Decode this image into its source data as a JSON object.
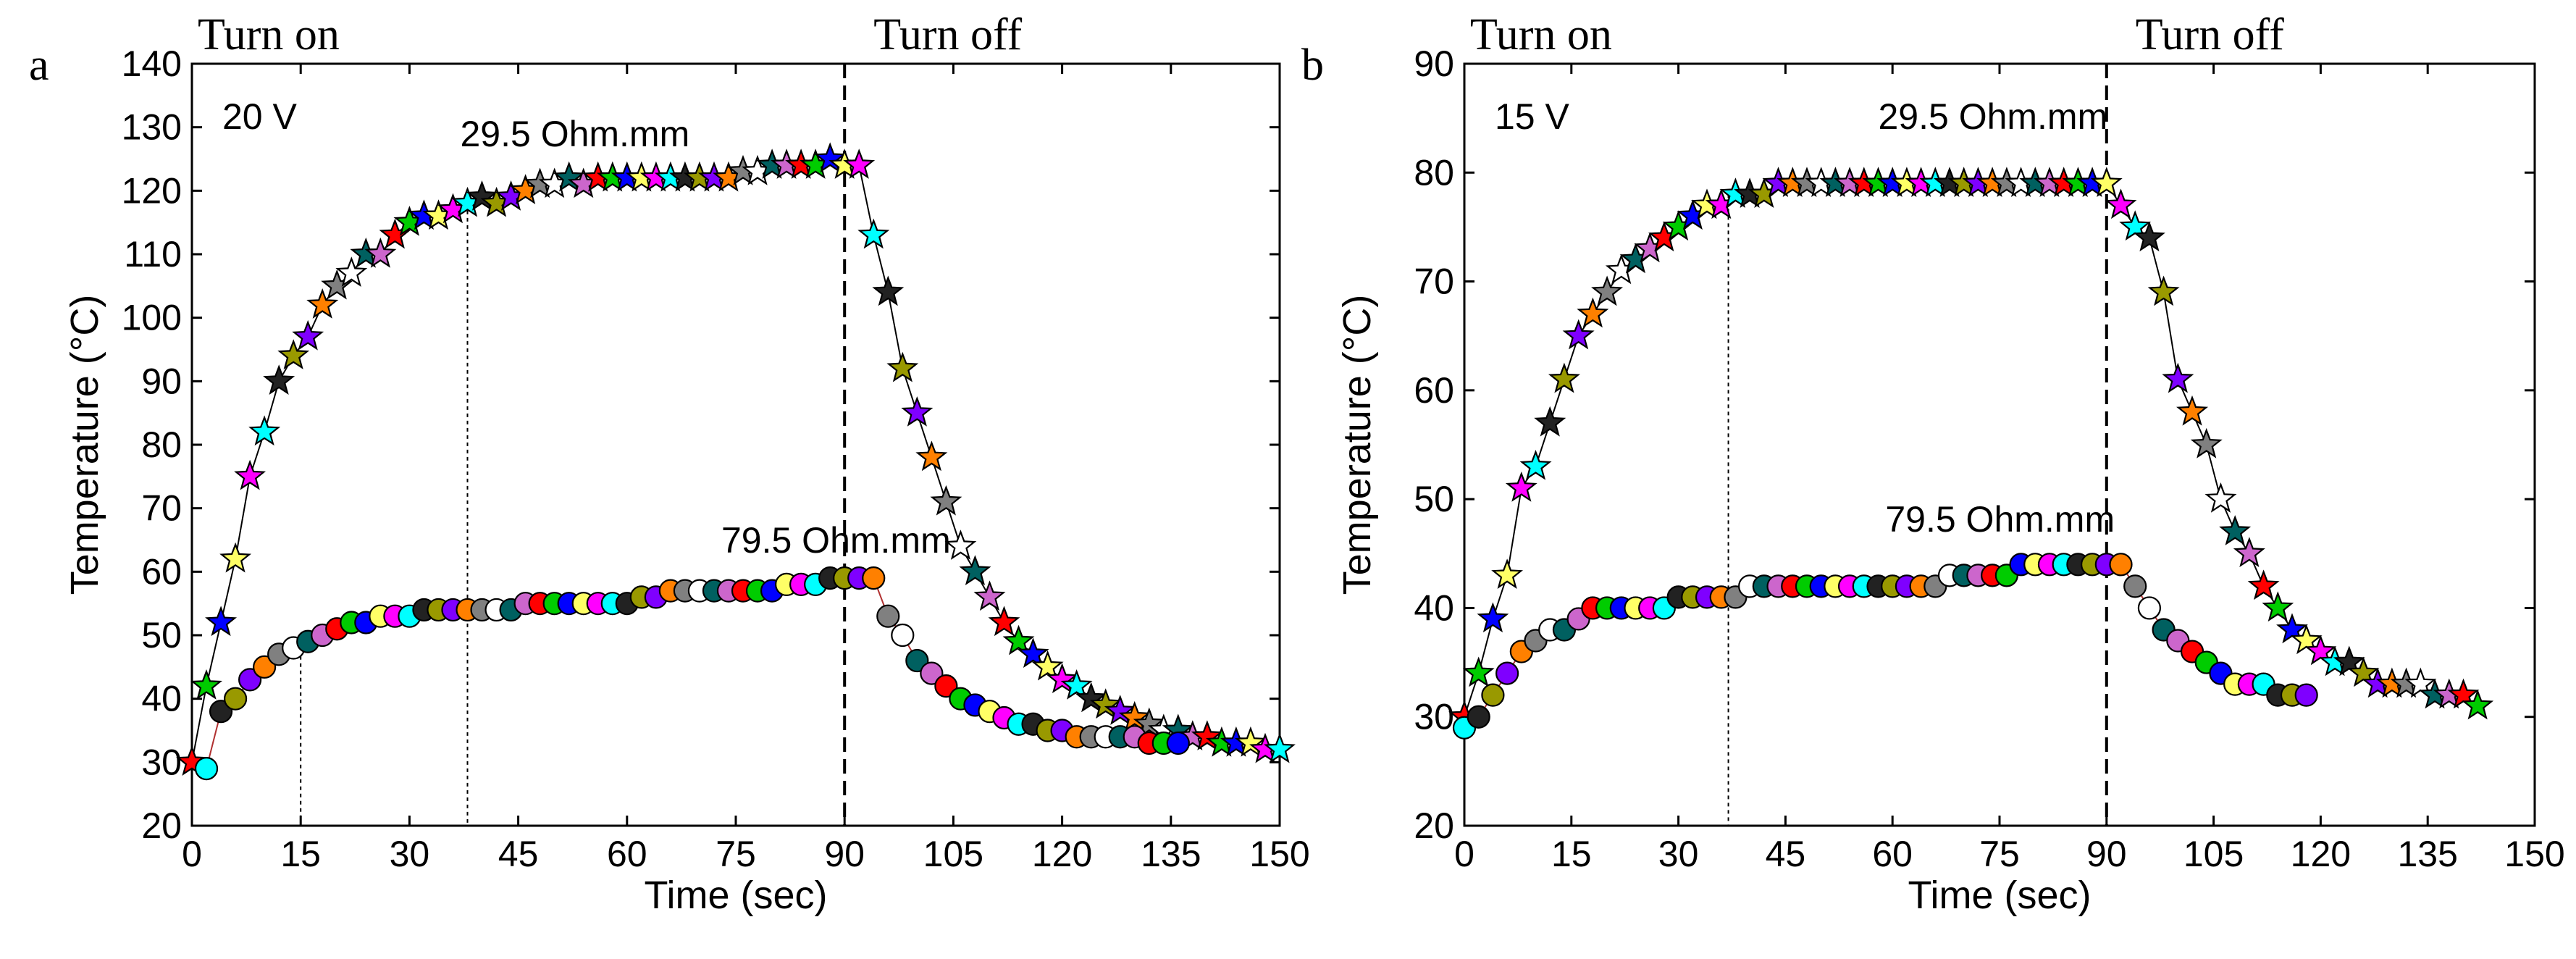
{
  "chart_data": [
    {
      "type": "line",
      "panel_label": "a",
      "voltage_label": "20 V",
      "phase_labels": {
        "on": "Turn on",
        "off": "Turn  off"
      },
      "xlabel": "Time (sec)",
      "ylabel": "Temperature (°C)",
      "xlim": [
        0,
        150
      ],
      "ylim": [
        20,
        140
      ],
      "xticks": [
        0,
        15,
        30,
        45,
        60,
        75,
        90,
        105,
        120,
        135,
        150
      ],
      "yticks": [
        20,
        30,
        40,
        50,
        60,
        70,
        80,
        90,
        100,
        110,
        120,
        130,
        140
      ],
      "turn_off_time": 90,
      "guide_lines": [
        {
          "x": 15,
          "ymax": 49
        },
        {
          "x": 38,
          "ymax": 118
        }
      ],
      "series": [
        {
          "name": "29.5 Ohm.mm",
          "marker": "star",
          "label_anchor": [
            37,
            127
          ],
          "x": [
            0,
            2,
            4,
            6,
            8,
            10,
            12,
            14,
            16,
            18,
            20,
            22,
            24,
            26,
            28,
            30,
            32,
            34,
            36,
            38,
            40,
            42,
            44,
            46,
            48,
            50,
            52,
            54,
            56,
            58,
            60,
            62,
            64,
            66,
            68,
            70,
            72,
            74,
            76,
            78,
            80,
            82,
            84,
            86,
            88,
            90,
            92,
            94,
            96,
            98,
            100,
            102,
            104,
            106,
            108,
            110,
            112,
            114,
            116,
            118,
            120,
            122,
            124,
            126,
            128,
            130,
            132,
            134,
            136,
            138,
            140,
            142,
            144,
            146,
            148,
            150
          ],
          "y": [
            30,
            42,
            52,
            62,
            75,
            82,
            90,
            94,
            97,
            102,
            105,
            107,
            110,
            110,
            113,
            115,
            116,
            116,
            117,
            118,
            119,
            118,
            119,
            120,
            121,
            121,
            122,
            121,
            122,
            122,
            122,
            122,
            122,
            122,
            122,
            122,
            122,
            122,
            123,
            123,
            124,
            124,
            124,
            124,
            125,
            124,
            124,
            113,
            104,
            92,
            85,
            78,
            71,
            64,
            60,
            56,
            52,
            49,
            47,
            45,
            43,
            42,
            40,
            39,
            38,
            37,
            36,
            35,
            35,
            34,
            34,
            33,
            33,
            33,
            32,
            32
          ]
        },
        {
          "name": "79.5 Ohm.mm",
          "marker": "circle",
          "label_anchor": [
            73,
            63
          ],
          "x": [
            2,
            4,
            6,
            8,
            10,
            12,
            14,
            16,
            18,
            20,
            22,
            24,
            26,
            28,
            30,
            32,
            34,
            36,
            38,
            40,
            42,
            44,
            46,
            48,
            50,
            52,
            54,
            56,
            58,
            60,
            62,
            64,
            66,
            68,
            70,
            72,
            74,
            76,
            78,
            80,
            82,
            84,
            86,
            88,
            90,
            92,
            94,
            96,
            98,
            100,
            102,
            104,
            106,
            108,
            110,
            112,
            114,
            116,
            118,
            120,
            122,
            124,
            126,
            128,
            130,
            132,
            134,
            136
          ],
          "y": [
            29,
            38,
            40,
            43,
            45,
            47,
            48,
            49,
            50,
            51,
            52,
            52,
            53,
            53,
            53,
            54,
            54,
            54,
            54,
            54,
            54,
            54,
            55,
            55,
            55,
            55,
            55,
            55,
            55,
            55,
            56,
            56,
            57,
            57,
            57,
            57,
            57,
            57,
            57,
            57,
            58,
            58,
            58,
            59,
            59,
            59,
            59,
            53,
            50,
            46,
            44,
            42,
            40,
            39,
            38,
            37,
            36,
            36,
            35,
            35,
            34,
            34,
            34,
            34,
            34,
            33,
            33,
            33
          ]
        }
      ]
    },
    {
      "type": "line",
      "panel_label": "b",
      "voltage_label": "15 V",
      "phase_labels": {
        "on": "Turn on",
        "off": "Turn  off"
      },
      "xlabel": "Time (sec)",
      "ylabel": "Temperature (°C)",
      "xlim": [
        0,
        150
      ],
      "ylim": [
        20,
        90
      ],
      "xticks": [
        0,
        15,
        30,
        45,
        60,
        75,
        90,
        105,
        120,
        135,
        150
      ],
      "yticks": [
        20,
        30,
        40,
        50,
        60,
        70,
        80,
        90
      ],
      "turn_off_time": 90,
      "guide_lines": [
        {
          "x": 37,
          "ymax": 78
        }
      ],
      "series": [
        {
          "name": "29.5 Ohm.mm",
          "marker": "star",
          "label_anchor": [
            58,
            84
          ],
          "x": [
            0,
            2,
            4,
            6,
            8,
            10,
            12,
            14,
            16,
            18,
            20,
            22,
            24,
            26,
            28,
            30,
            32,
            34,
            36,
            38,
            40,
            42,
            44,
            46,
            48,
            50,
            52,
            54,
            56,
            58,
            60,
            62,
            64,
            66,
            68,
            70,
            72,
            74,
            76,
            78,
            80,
            82,
            84,
            86,
            88,
            90,
            92,
            94,
            96,
            98,
            100,
            102,
            104,
            106,
            108,
            110,
            112,
            114,
            116,
            118,
            120,
            122,
            124,
            126,
            128,
            130,
            132,
            134,
            136,
            138,
            140,
            142
          ],
          "y": [
            30,
            34,
            39,
            43,
            51,
            53,
            57,
            61,
            65,
            67,
            69,
            71,
            72,
            73,
            74,
            75,
            76,
            77,
            77,
            78,
            78,
            78,
            79,
            79,
            79,
            79,
            79,
            79,
            79,
            79,
            79,
            79,
            79,
            79,
            79,
            79,
            79,
            79,
            79,
            79,
            79,
            79,
            79,
            79,
            79,
            79,
            77,
            75,
            74,
            69,
            61,
            58,
            55,
            50,
            47,
            45,
            42,
            40,
            38,
            37,
            36,
            35,
            35,
            34,
            33,
            33,
            33,
            33,
            32,
            32,
            32,
            31
          ]
        },
        {
          "name": "79.5 Ohm.mm",
          "marker": "circle",
          "label_anchor": [
            59,
            47
          ],
          "x": [
            0,
            2,
            4,
            6,
            8,
            10,
            12,
            14,
            16,
            18,
            20,
            22,
            24,
            26,
            28,
            30,
            32,
            34,
            36,
            38,
            40,
            42,
            44,
            46,
            48,
            50,
            52,
            54,
            56,
            58,
            60,
            62,
            64,
            66,
            68,
            70,
            72,
            74,
            76,
            78,
            80,
            82,
            84,
            86,
            88,
            90,
            92,
            94,
            96,
            98,
            100,
            102,
            104,
            106,
            108,
            110,
            112,
            114,
            116,
            118
          ],
          "y": [
            29,
            30,
            32,
            34,
            36,
            37,
            38,
            38,
            39,
            40,
            40,
            40,
            40,
            40,
            40,
            41,
            41,
            41,
            41,
            41,
            42,
            42,
            42,
            42,
            42,
            42,
            42,
            42,
            42,
            42,
            42,
            42,
            42,
            42,
            43,
            43,
            43,
            43,
            43,
            44,
            44,
            44,
            44,
            44,
            44,
            44,
            44,
            42,
            40,
            38,
            37,
            36,
            35,
            34,
            33,
            33,
            33,
            32,
            32,
            32
          ]
        }
      ]
    }
  ],
  "marker_palette": [
    "#ff0000",
    "#00cc00",
    "#0000ff",
    "#ffff66",
    "#ff00ff",
    "#00ffff",
    "#222222",
    "#999900",
    "#7f00ff",
    "#ff8000",
    "#808080",
    "#ffffff",
    "#006060",
    "#cc66cc"
  ]
}
